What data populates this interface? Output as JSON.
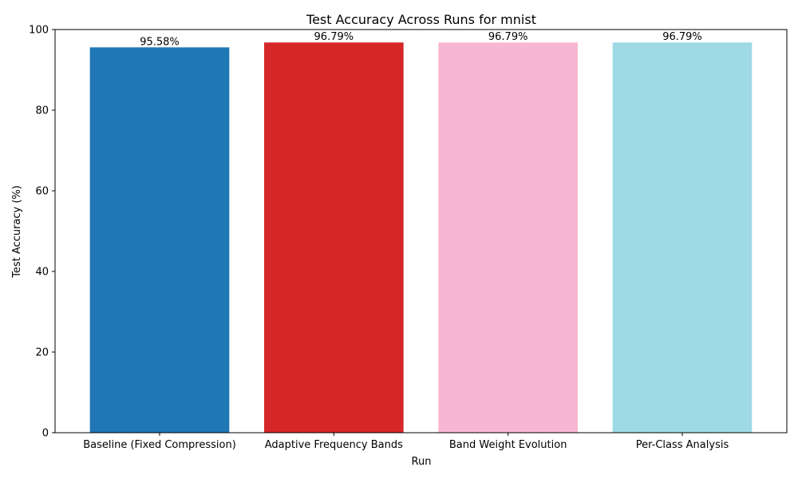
{
  "chart_data": {
    "type": "bar",
    "title": "Test Accuracy Across Runs for mnist",
    "xlabel": "Run",
    "ylabel": "Test Accuracy (%)",
    "categories": [
      "Baseline (Fixed Compression)",
      "Adaptive Frequency Bands",
      "Band Weight Evolution",
      "Per-Class Analysis"
    ],
    "values": [
      95.58,
      96.79,
      96.79,
      96.79
    ],
    "value_labels": [
      "95.58%",
      "96.79%",
      "96.79%",
      "96.79%"
    ],
    "colors": [
      "#1f77b4",
      "#d62728",
      "#f7b6d2",
      "#9edae5"
    ],
    "ylim": [
      0,
      100
    ],
    "yticks": [
      0,
      20,
      40,
      60,
      80,
      100
    ],
    "grid": false,
    "legend": "none"
  }
}
